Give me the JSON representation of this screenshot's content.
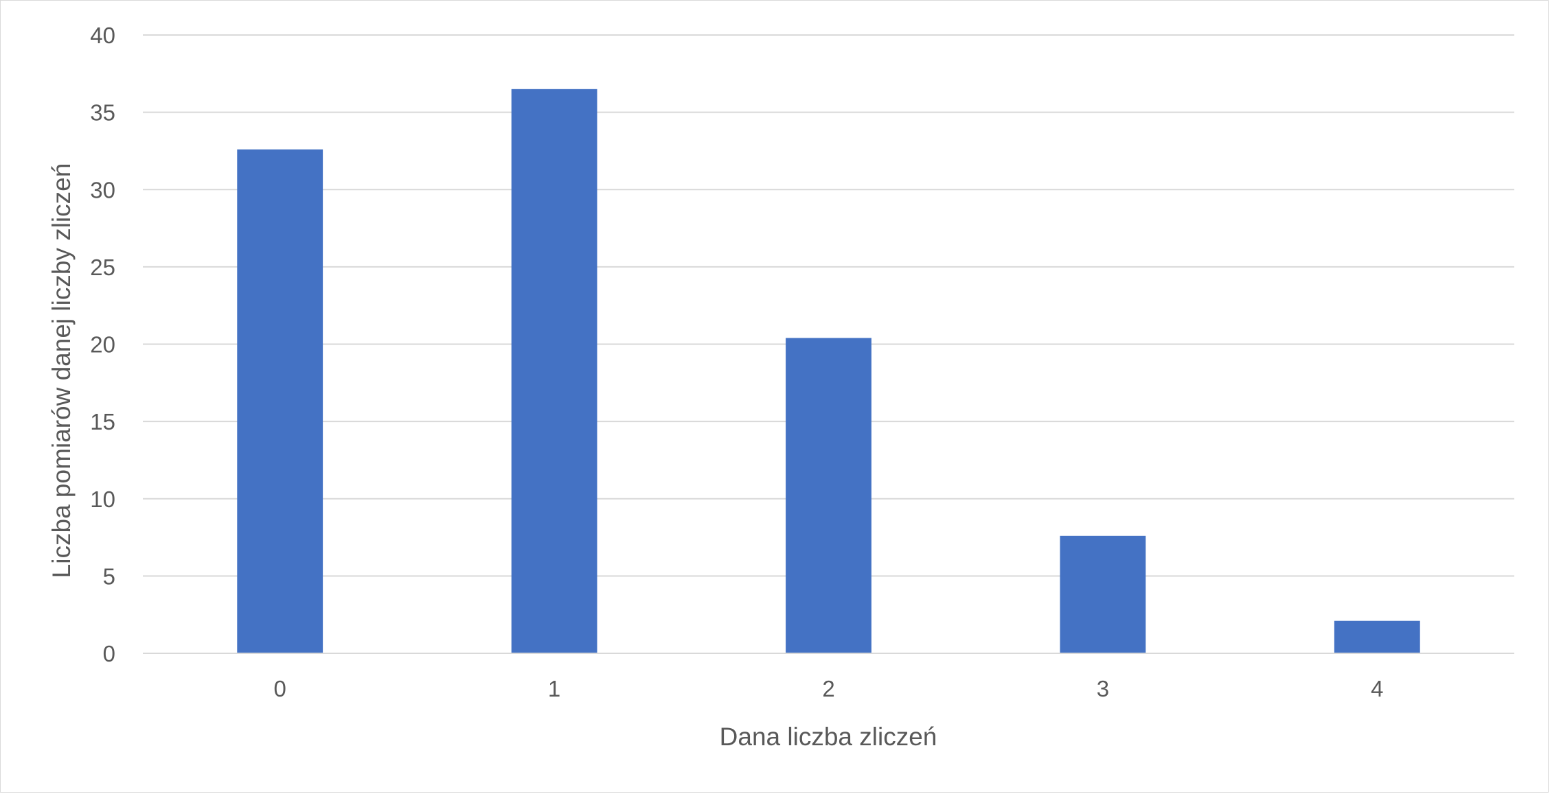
{
  "chart_data": {
    "type": "bar",
    "title": "",
    "xlabel": "Dana liczba zliczeń",
    "ylabel": "Liczba pomiarów danej liczby zliczeń",
    "categories": [
      "0",
      "1",
      "2",
      "3",
      "4"
    ],
    "values": [
      32.6,
      36.5,
      20.4,
      7.6,
      2.1
    ],
    "ylim": [
      0,
      40
    ],
    "yticks": [
      "0",
      "5",
      "10",
      "15",
      "20",
      "25",
      "30",
      "35",
      "40"
    ],
    "grid": true,
    "legend": "none",
    "colors": {
      "bar": "#4472c4",
      "grid": "#d9d9d9",
      "text": "#595959"
    }
  }
}
